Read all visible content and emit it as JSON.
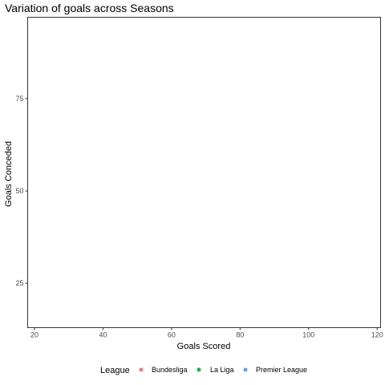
{
  "chart_data": {
    "type": "scatter",
    "title": "Variation of goals across Seasons",
    "xlabel": "Goals Scored",
    "ylabel": "Goals Conceded",
    "xlim": [
      18,
      121
    ],
    "ylim": [
      13,
      97
    ],
    "x_ticks": [
      20,
      40,
      60,
      80,
      100,
      120
    ],
    "y_ticks": [
      25,
      50,
      75
    ],
    "grid": false,
    "legend": {
      "title": "League",
      "position": "bottom",
      "entries": [
        {
          "name": "Bundesliga",
          "color": "#F8766D"
        },
        {
          "name": "La Liga",
          "color": "#00BA38"
        },
        {
          "name": "Premier League",
          "color": "#619CFF"
        }
      ]
    },
    "series": [
      {
        "name": "Bundesliga",
        "color": "#F8766D",
        "points": []
      },
      {
        "name": "La Liga",
        "color": "#00BA38",
        "points": []
      },
      {
        "name": "Premier League",
        "color": "#619CFF",
        "points": []
      }
    ]
  }
}
